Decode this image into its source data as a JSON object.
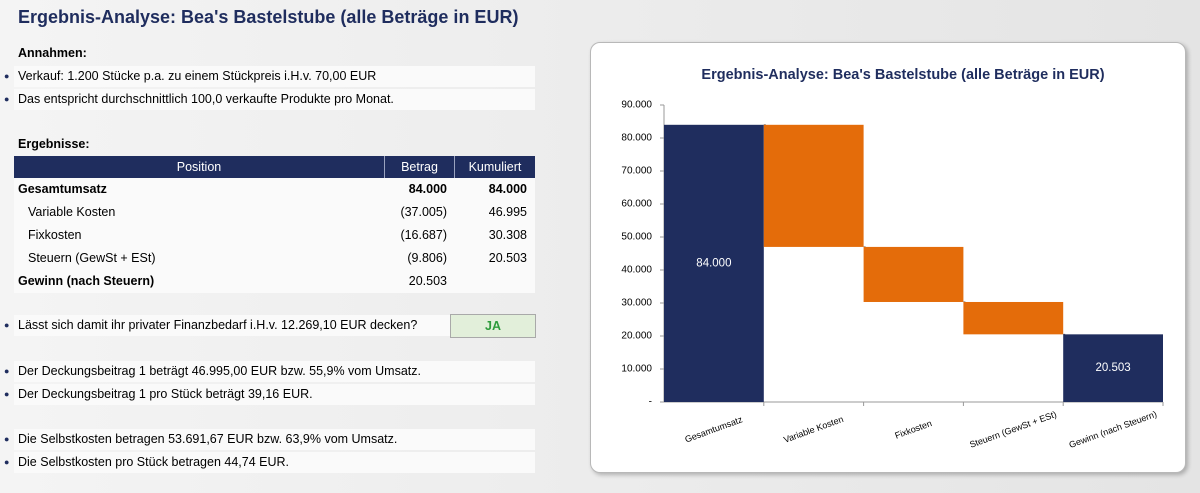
{
  "header": {
    "title": "Ergebnis-Analyse: Bea's Bastelstube (alle Beträge in EUR)"
  },
  "assumptions": {
    "heading": "Annahmen:",
    "items": [
      "Verkauf: 1.200 Stücke p.a. zu einem Stückpreis i.H.v. 70,00 EUR",
      "Das entspricht durchschnittlich 100,0 verkaufte Produkte pro Monat."
    ]
  },
  "results": {
    "heading": "Ergebnisse:",
    "table": {
      "columns": [
        "Position",
        "Betrag",
        "Kumuliert"
      ],
      "rows": [
        [
          "Gesamtumsatz",
          "84.000",
          "84.000"
        ],
        [
          "Variable Kosten",
          "(37.005)",
          "46.995"
        ],
        [
          "Fixkosten",
          "(16.687)",
          "30.308"
        ],
        [
          "Steuern (GewSt + ESt)",
          "(9.806)",
          "20.503"
        ],
        [
          "Gewinn (nach Steuern)",
          "20.503"
        ]
      ]
    }
  },
  "question": {
    "text": "Lässt sich damit ihr privater Finanzbedarf i.H.v. 12.269,10 EUR decken?",
    "answer": "JA"
  },
  "notes": [
    "Der Deckungsbeitrag 1 beträgt 46.995,00 EUR bzw. 55,9% vom Umsatz.",
    "Der Deckungsbeitrag 1 pro Stück beträgt 39,16 EUR.",
    "Die Selbstkosten betragen 53.691,67 EUR bzw. 63,9% vom Umsatz.",
    "Die Selbstkosten pro Stück betragen 44,74 EUR."
  ],
  "chart_data": {
    "type": "waterfall",
    "title": "Ergebnis-Analyse: Bea's Bastelstube (alle Beträge in EUR)",
    "categories": [
      "Gesamtumsatz",
      "Variable Kosten",
      "Fixkosten",
      "Steuern (GewSt + ESt)",
      "Gewinn (nach Steuern)"
    ],
    "values": [
      84000,
      -37005,
      -16687,
      -9806,
      20503
    ],
    "value_labels": [
      "84.000",
      null,
      null,
      null,
      "20.503"
    ],
    "totals": [
      true,
      false,
      false,
      false,
      true
    ],
    "colors": [
      "#1f2d5e",
      "#e46c0a",
      "#e46c0a",
      "#e46c0a",
      "#1f2d5e"
    ],
    "ylim": [
      0,
      90000
    ],
    "yticks": [
      {
        "value": 0,
        "label": "-"
      },
      {
        "value": 10000,
        "label": "10.000"
      },
      {
        "value": 20000,
        "label": "20.000"
      },
      {
        "value": 30000,
        "label": "30.000"
      },
      {
        "value": 40000,
        "label": "40.000"
      },
      {
        "value": 50000,
        "label": "50.000"
      },
      {
        "value": 60000,
        "label": "60.000"
      },
      {
        "value": 70000,
        "label": "70.000"
      },
      {
        "value": 80000,
        "label": "80.000"
      },
      {
        "value": 90000,
        "label": "90.000"
      }
    ]
  }
}
